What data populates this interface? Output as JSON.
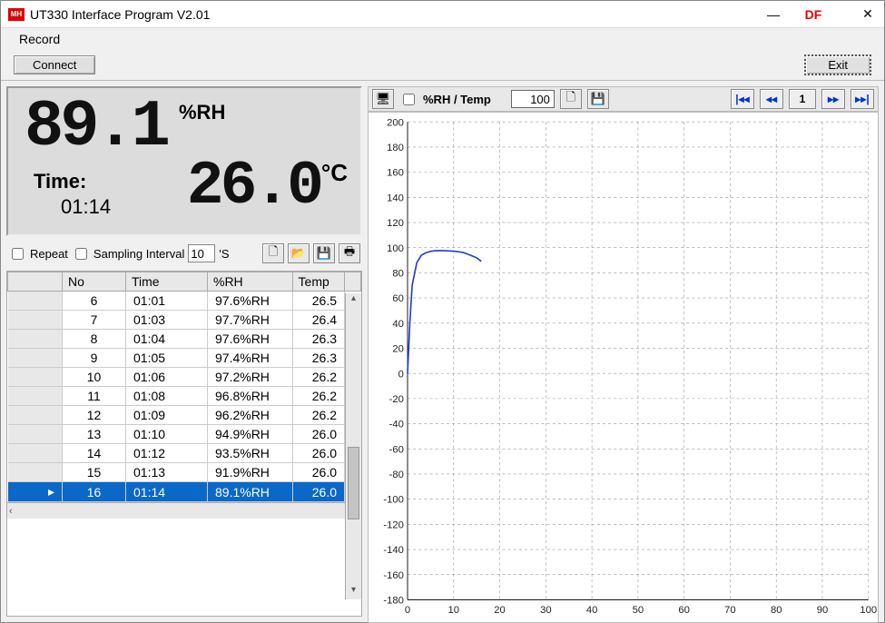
{
  "window": {
    "title": "UT330 Interface Program V2.01",
    "app_icon_text": "MH",
    "df_label": "DF"
  },
  "menu": {
    "record": "Record"
  },
  "buttons": {
    "connect": "Connect",
    "exit": "Exit"
  },
  "lcd": {
    "rh_value": "89.1",
    "rh_unit": "%RH",
    "temp_value": "26.0",
    "temp_unit": "°C",
    "time_label": "Time:",
    "time_value": "01:14"
  },
  "options": {
    "repeat_label": "Repeat",
    "sampling_label": "Sampling Interval",
    "sampling_value": "10",
    "sampling_unit": "'S"
  },
  "table": {
    "columns": [
      "No",
      "Time",
      "%RH",
      "Temp"
    ],
    "rows": [
      [
        "6",
        "01:01",
        "97.6%RH",
        "26.5"
      ],
      [
        "7",
        "01:03",
        "97.7%RH",
        "26.4"
      ],
      [
        "8",
        "01:04",
        "97.6%RH",
        "26.3"
      ],
      [
        "9",
        "01:05",
        "97.4%RH",
        "26.3"
      ],
      [
        "10",
        "01:06",
        "97.2%RH",
        "26.2"
      ],
      [
        "11",
        "01:08",
        "96.8%RH",
        "26.2"
      ],
      [
        "12",
        "01:09",
        "96.2%RH",
        "26.2"
      ],
      [
        "13",
        "01:10",
        "94.9%RH",
        "26.0"
      ],
      [
        "14",
        "01:12",
        "93.5%RH",
        "26.0"
      ],
      [
        "15",
        "01:13",
        "91.9%RH",
        "26.0"
      ],
      [
        "16",
        "01:14",
        "89.1%RH",
        "26.0"
      ]
    ],
    "selected_idx": 10
  },
  "chart": {
    "toolbar_label": "%RH / Temp",
    "point_count": "100",
    "page_display": "1",
    "type": "line",
    "xlim": [
      0,
      100
    ],
    "ylim": [
      -180,
      200
    ],
    "xtick_step": 10,
    "ytick_step": 20,
    "grid_color": "#999999",
    "axis_color": "#222222",
    "background_color": "#ffffff",
    "label_fontsize": 11,
    "series_color": "#2040d0",
    "series_width": 1.6,
    "series_x": [
      0,
      0.5,
      1,
      2,
      3,
      4,
      5,
      6,
      7,
      8,
      9,
      10,
      11,
      12,
      13,
      14,
      15,
      16
    ],
    "series_y": [
      0,
      40,
      70,
      88,
      94,
      96,
      97,
      97.6,
      97.7,
      97.6,
      97.4,
      97.2,
      96.8,
      96.2,
      94.9,
      93.5,
      91.9,
      89.1
    ]
  },
  "icons": {
    "new": "🗋",
    "open": "📂",
    "save": "💾",
    "print": "🖶",
    "device": "🖥"
  }
}
